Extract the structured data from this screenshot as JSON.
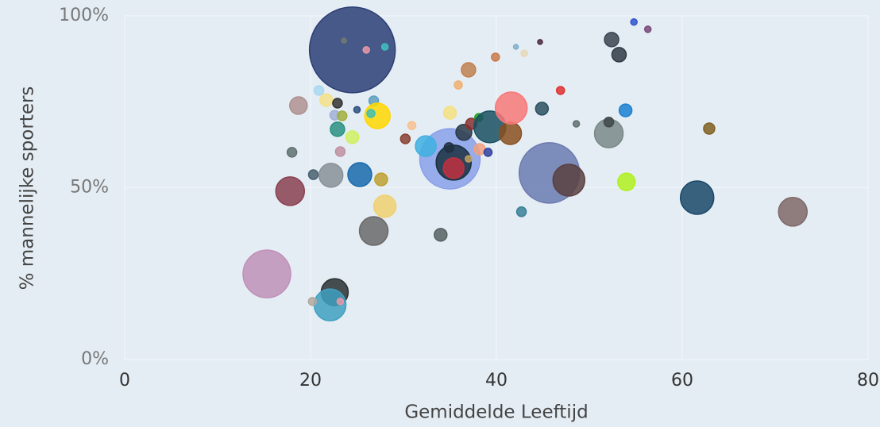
{
  "chart_data": {
    "type": "scatter",
    "x_label": "Gemiddelde Leeftijd",
    "y_label": "% mannelijke sporters",
    "xlim": [
      0,
      80
    ],
    "xticks": [
      0,
      20,
      40,
      60,
      80
    ],
    "ylim": [
      0,
      100
    ],
    "yticks": [
      {
        "value": 0,
        "label": "0%"
      },
      {
        "value": 50,
        "label": "50%"
      },
      {
        "value": 100,
        "label": "100%"
      }
    ],
    "grid": true,
    "x": [
      24.5,
      23.6,
      26.0,
      28.0,
      54.8,
      56.3,
      52.4,
      53.2,
      44.7,
      42.1,
      43.0,
      39.9,
      37.0,
      35.9,
      20.9,
      18.7,
      21.7,
      22.9,
      25.0,
      26.8,
      22.6,
      23.4,
      27.2,
      26.5,
      22.9,
      24.5,
      23.2,
      18.0,
      20.3,
      22.2,
      25.3,
      27.6,
      17.8,
      28.0,
      26.8,
      15.3,
      22.6,
      22.1,
      23.2,
      20.2,
      34.0,
      35.0,
      35.4,
      35.4,
      32.4,
      35.0,
      30.9,
      30.2,
      34.9,
      36.5,
      37.3,
      38.1,
      39.3,
      41.5,
      41.6,
      38.2,
      39.1,
      37.0,
      44.9,
      46.9,
      48.6,
      45.7,
      47.8,
      42.7,
      52.1,
      52.1,
      53.9,
      54.0,
      62.9,
      61.6,
      71.9
    ],
    "values": [
      90.1,
      92.8,
      90.1,
      91.0,
      98.2,
      96.1,
      93.1,
      88.7,
      92.4,
      91.0,
      89.1,
      88.0,
      84.3,
      79.9,
      78.3,
      73.9,
      75.5,
      74.6,
      72.7,
      75.3,
      71.1,
      70.9,
      70.9,
      71.6,
      67.0,
      64.7,
      60.5,
      60.3,
      53.8,
      53.6,
      53.8,
      52.4,
      49.0,
      44.6,
      37.4,
      24.9,
      19.6,
      15.9,
      16.9,
      16.9,
      36.3,
      58.4,
      57.3,
      55.7,
      62.1,
      71.8,
      68.1,
      64.2,
      61.7,
      66.1,
      68.6,
      70.4,
      67.7,
      65.8,
      73.2,
      61.2,
      60.3,
      58.4,
      73.0,
      78.3,
      68.6,
      54.3,
      52.2,
      43.0,
      65.8,
      69.1,
      72.5,
      51.7,
      67.2,
      47.1,
      43.0
    ],
    "sizes": [
      54,
      3,
      4,
      4,
      4,
      4,
      9,
      9,
      3,
      3,
      4,
      5,
      9,
      5,
      6,
      11,
      8,
      6,
      4,
      6,
      6,
      6,
      16,
      5,
      9,
      8,
      6,
      6,
      6,
      15,
      15,
      8,
      18,
      14,
      18,
      30,
      17,
      20,
      4,
      5,
      8,
      38,
      22,
      13,
      13,
      8,
      5,
      6,
      6,
      10,
      7,
      5,
      20,
      14,
      20,
      7,
      5,
      4,
      8,
      5,
      4,
      38,
      20,
      6,
      18,
      6,
      8,
      11,
      7,
      21,
      18
    ],
    "colors": [
      "#2c3e74",
      "#707a70",
      "#e898a8",
      "#40c0c0",
      "#3355cc",
      "#7a4a7a",
      "#3a4450",
      "#2f3a44",
      "#4a2a40",
      "#80b0c8",
      "#e8d8b8",
      "#c87a4a",
      "#c08050",
      "#f0b070",
      "#a8d8f0",
      "#b09090",
      "#f5e08a",
      "#333333",
      "#2a5080",
      "#5fa0c0",
      "#a0b0d8",
      "#a0b040",
      "#ffd700",
      "#40c0b0",
      "#2a9080",
      "#d0f060",
      "#c090a0",
      "#607070",
      "#4a6070",
      "#8a9098",
      "#1a6aaa",
      "#c0a030",
      "#8a4050",
      "#f0d070",
      "#6a6868",
      "#c090b8",
      "#2a3030",
      "#40a0c0",
      "#e898a8",
      "#b0a8a0",
      "#556060",
      "#8aa0e8",
      "#1a3040",
      "#c03040",
      "#40b0e0",
      "#f5e080",
      "#f8c090",
      "#8a4030",
      "#203040",
      "#2a3a48",
      "#8a3030",
      "#20a020",
      "#1a5060",
      "#8a5020",
      "#f87878",
      "#f0a080",
      "#3040a0",
      "#c0a060",
      "#2a5060",
      "#e03030",
      "#607070",
      "#6a7ab0",
      "#5a4040",
      "#3a8098",
      "#7a8888",
      "#404848",
      "#1a80d0",
      "#b0f020",
      "#806020",
      "#1a4868",
      "#806868"
    ]
  }
}
